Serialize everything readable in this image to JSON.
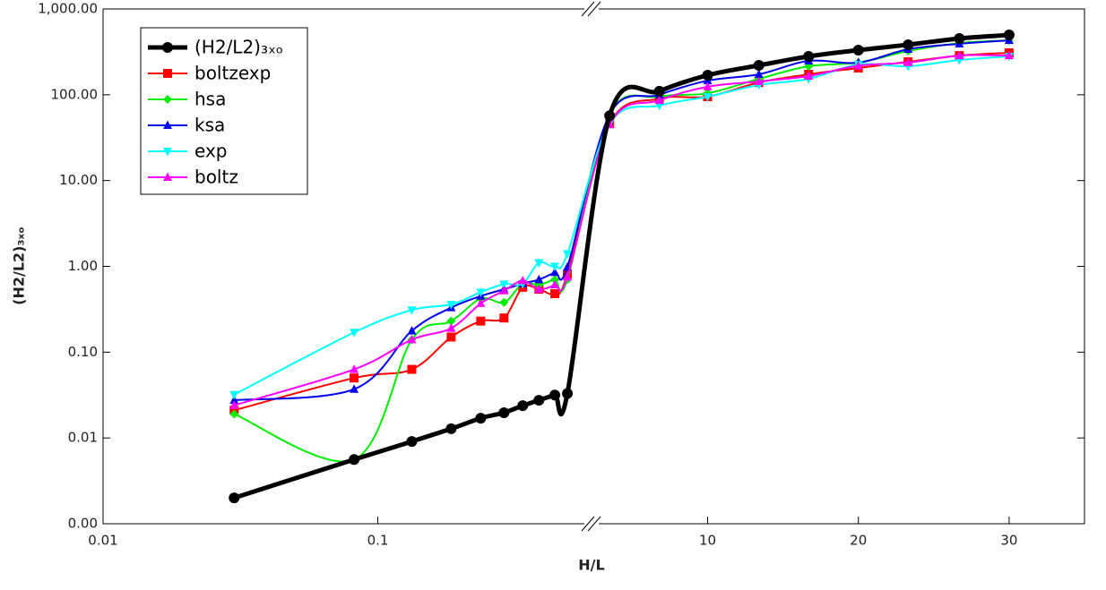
{
  "chart_data": {
    "type": "line",
    "xlabel": "H/L",
    "ylabel": "(H2/L2)₃ₓₒ",
    "ylog": true,
    "ylim": [
      0.001,
      1000
    ],
    "yticks": [
      {
        "value": 0.001,
        "label": "0.00"
      },
      {
        "value": 0.01,
        "label": "0.01"
      },
      {
        "value": 0.1,
        "label": "0.10"
      },
      {
        "value": 1,
        "label": "1.00"
      },
      {
        "value": 10,
        "label": "10.00"
      },
      {
        "value": 100,
        "label": "100.00"
      },
      {
        "value": 1000,
        "label": "1,000.00"
      }
    ],
    "x_segments": [
      {
        "log": true,
        "xlim": [
          0.01,
          0.6
        ],
        "xticks": [
          0.01,
          0.1
        ]
      },
      {
        "log": false,
        "xlim": [
          2.3,
          35
        ],
        "xticks": [
          10,
          20,
          30
        ]
      }
    ],
    "legend": "upper left",
    "x": [
      0.03,
      0.082,
      0.133,
      0.185,
      0.237,
      0.288,
      0.337,
      0.386,
      0.441,
      0.49,
      3.5,
      6.8,
      10,
      13.4,
      16.7,
      20,
      23.3,
      26.7,
      30
    ],
    "series": [
      {
        "name": "(H2/L2)₃ₓₒ",
        "color": "#000000",
        "marker": "circle",
        "width": 5,
        "values": [
          0.002,
          0.0056,
          0.0091,
          0.0128,
          0.017,
          0.0197,
          0.0238,
          0.0275,
          0.0316,
          0.033,
          57,
          110,
          169,
          220,
          280,
          331,
          383,
          453,
          498
        ]
      },
      {
        "name": "boltzexp",
        "color": "#ff0000",
        "marker": "square",
        "width": 2,
        "values": [
          0.021,
          0.05,
          0.063,
          0.15,
          0.23,
          0.25,
          0.57,
          0.54,
          0.48,
          0.81,
          46,
          90,
          95,
          139,
          173,
          205,
          242,
          286,
          308
        ]
      },
      {
        "name": "hsa",
        "color": "#00ee00",
        "marker": "diamond",
        "width": 2,
        "values": [
          0.019,
          0.0056,
          0.14,
          0.23,
          0.42,
          0.38,
          0.63,
          0.61,
          0.7,
          0.7,
          59,
          95,
          104,
          153,
          215,
          237,
          323,
          400,
          430
        ]
      },
      {
        "name": "ksa",
        "color": "#0000ee",
        "marker": "triangle-up",
        "width": 2,
        "values": [
          0.0275,
          0.037,
          0.177,
          0.33,
          0.45,
          0.54,
          0.63,
          0.7,
          0.85,
          0.98,
          59,
          100,
          146,
          173,
          248,
          237,
          339,
          392,
          430
        ]
      },
      {
        "name": "exp",
        "color": "#00ffff",
        "marker": "triangle-down",
        "width": 2,
        "values": [
          0.032,
          0.17,
          0.31,
          0.36,
          0.5,
          0.62,
          0.63,
          1.1,
          1.0,
          1.4,
          46,
          75,
          95,
          130,
          153,
          225,
          215,
          254,
          280
        ]
      },
      {
        "name": "boltz",
        "color": "#ff00ff",
        "marker": "triangle-up",
        "width": 2,
        "values": [
          0.024,
          0.063,
          0.14,
          0.19,
          0.37,
          0.52,
          0.68,
          0.54,
          0.61,
          0.75,
          45,
          86,
          124,
          143,
          165,
          218,
          237,
          286,
          286
        ]
      }
    ]
  }
}
